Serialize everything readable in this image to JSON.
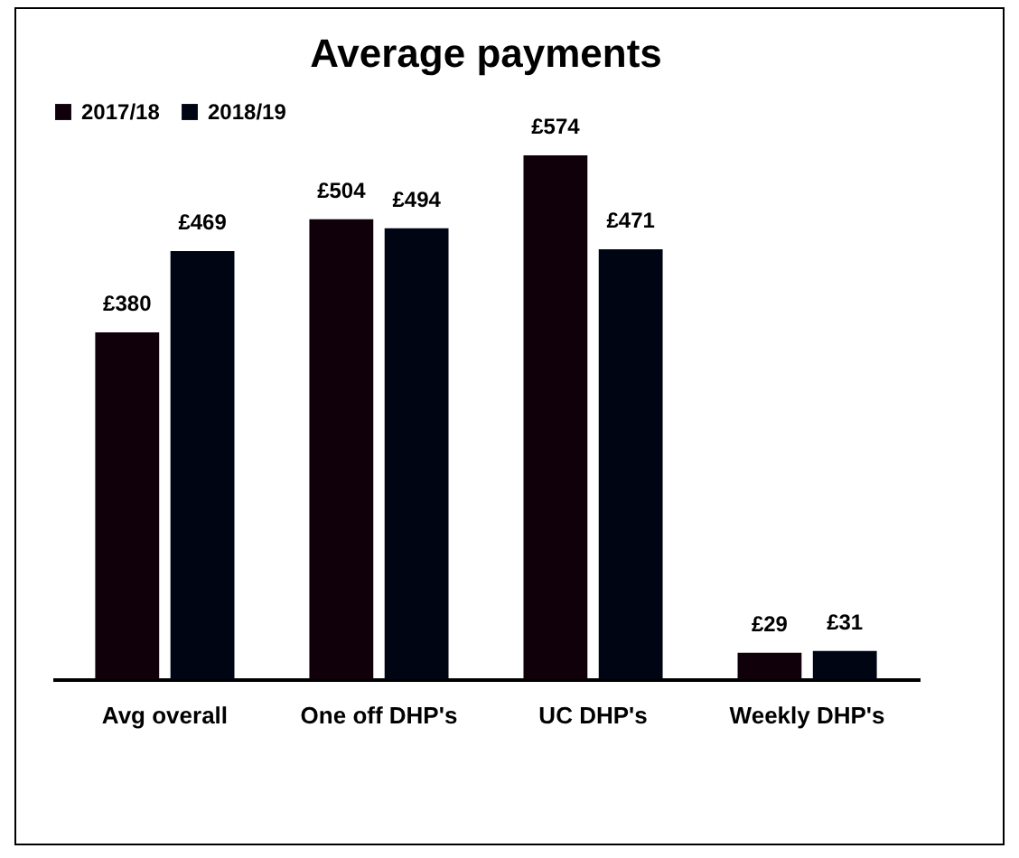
{
  "chart_data": {
    "type": "bar",
    "title": "Average payments",
    "categories": [
      "Avg overall",
      "One off DHP's",
      "UC DHP's",
      "Weekly DHP's"
    ],
    "series": [
      {
        "name": "2017/18",
        "color": "#10000a",
        "values": [
          380,
          504,
          574,
          29
        ],
        "value_labels": [
          "£380",
          "£504",
          "£574",
          "£29"
        ]
      },
      {
        "name": "2018/19",
        "color": "#000514",
        "values": [
          469,
          494,
          471,
          31
        ],
        "value_labels": [
          "£469",
          "£494",
          "£471",
          "£31"
        ]
      }
    ],
    "legend": "top",
    "grid": false
  }
}
